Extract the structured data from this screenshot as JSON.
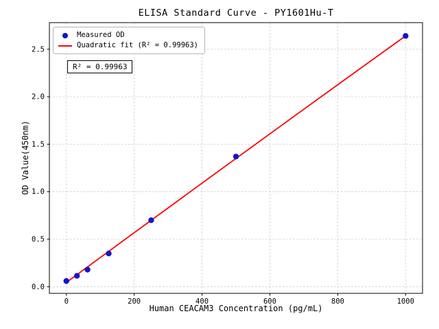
{
  "chart_data": {
    "type": "scatter",
    "title": "ELISA Standard Curve - PY1601Hu-T",
    "xlabel": "Human CEACAM3 Concentration (pg/mL)",
    "ylabel": "OD Value(450nm)",
    "xlim": [
      -50,
      1050
    ],
    "ylim": [
      -0.07,
      2.78
    ],
    "xticks": [
      0,
      200,
      400,
      600,
      800,
      1000
    ],
    "xtick_labels": [
      "0",
      "200",
      "400",
      "600",
      "800",
      "1000"
    ],
    "yticks": [
      0.0,
      0.5,
      1.0,
      1.5,
      2.0,
      2.5
    ],
    "ytick_labels": [
      "0.0",
      "0.5",
      "1.0",
      "1.5",
      "2.0",
      "2.5"
    ],
    "grid": true,
    "annotation": "R² = 0.99963",
    "legend": {
      "position": "upper-left",
      "entries": [
        {
          "label": "Measured OD",
          "marker": "dot",
          "color": "#1414cc"
        },
        {
          "label": "Quadratic fit (R² = 0.99963)",
          "marker": "line",
          "color": "#ff0000"
        }
      ]
    },
    "series": [
      {
        "name": "Quadratic fit",
        "type": "line",
        "color": "#ff0000",
        "points": [
          [
            0,
            0.045
          ],
          [
            125,
            0.372
          ],
          [
            250,
            0.699
          ],
          [
            375,
            1.025
          ],
          [
            500,
            1.35
          ],
          [
            625,
            1.674
          ],
          [
            750,
            1.997
          ],
          [
            875,
            2.319
          ],
          [
            1000,
            2.64
          ]
        ]
      },
      {
        "name": "Measured OD",
        "type": "scatter",
        "color": "#1414cc",
        "points": [
          [
            0,
            0.06
          ],
          [
            31.25,
            0.115
          ],
          [
            62.5,
            0.18
          ],
          [
            125,
            0.35
          ],
          [
            250,
            0.7
          ],
          [
            500,
            1.37
          ],
          [
            1000,
            2.64
          ]
        ]
      }
    ]
  }
}
